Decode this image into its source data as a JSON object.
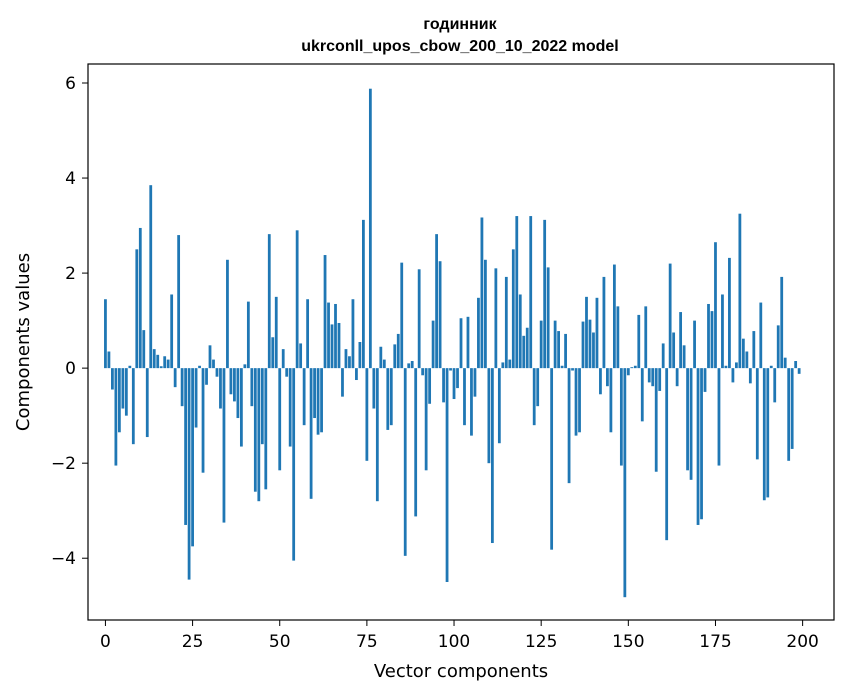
{
  "chart_data": {
    "type": "bar",
    "title_line1": "годинник",
    "title_line2": "ukrconll_upos_cbow_200_10_2022 model",
    "xlabel": "Vector components",
    "ylabel": "Components values",
    "xlim": [
      -5,
      209
    ],
    "ylim": [
      -5.3,
      6.4
    ],
    "xticks": [
      0,
      25,
      50,
      75,
      100,
      125,
      150,
      175,
      200
    ],
    "xtick_labels": [
      "0",
      "25",
      "50",
      "75",
      "100",
      "125",
      "150",
      "175",
      "200"
    ],
    "yticks": [
      -4,
      -2,
      0,
      2,
      4,
      6
    ],
    "ytick_labels": [
      "−4",
      "−2",
      "0",
      "2",
      "4",
      "6"
    ],
    "grid": false,
    "bar_color": "#1f77b4",
    "values": [
      1.45,
      0.35,
      -0.45,
      -2.05,
      -1.35,
      -0.85,
      -1.0,
      0.05,
      -1.6,
      2.5,
      2.95,
      0.8,
      -1.45,
      3.85,
      0.4,
      0.28,
      0.04,
      0.25,
      0.18,
      1.55,
      -0.4,
      2.8,
      -0.8,
      -3.3,
      -4.45,
      -3.75,
      -1.25,
      0.05,
      -2.2,
      -0.35,
      0.48,
      0.18,
      -0.18,
      -0.85,
      -3.25,
      2.28,
      -0.55,
      -0.7,
      -1.05,
      -1.65,
      0.08,
      1.4,
      -0.8,
      -2.6,
      -2.8,
      -1.6,
      -2.55,
      2.82,
      0.65,
      1.5,
      -2.15,
      0.4,
      -0.18,
      -1.65,
      -4.05,
      2.9,
      0.52,
      -1.2,
      1.45,
      -2.75,
      -1.05,
      -1.4,
      -1.35,
      2.38,
      1.38,
      0.92,
      1.35,
      0.95,
      -0.6,
      0.4,
      0.25,
      1.45,
      -0.25,
      0.55,
      3.12,
      -1.95,
      5.88,
      -0.85,
      -2.8,
      0.45,
      0.18,
      -1.3,
      -1.2,
      0.5,
      0.72,
      2.22,
      -3.95,
      0.1,
      0.15,
      -3.12,
      2.08,
      -0.15,
      -2.15,
      -0.75,
      1.0,
      2.82,
      2.25,
      -0.72,
      -4.5,
      -0.05,
      -0.65,
      -0.42,
      1.05,
      -1.2,
      1.08,
      -1.42,
      -0.6,
      1.48,
      3.17,
      2.28,
      -2.0,
      -3.68,
      2.1,
      -1.58,
      0.12,
      1.92,
      0.18,
      2.5,
      3.2,
      1.55,
      0.68,
      0.85,
      3.2,
      -1.2,
      -0.8,
      1.0,
      3.12,
      2.12,
      -3.82,
      1.0,
      0.78,
      0.05,
      0.72,
      -2.42,
      -0.05,
      -1.42,
      -1.35,
      0.98,
      1.5,
      1.02,
      0.75,
      1.48,
      -0.55,
      1.92,
      -0.38,
      -1.35,
      2.18,
      1.3,
      -2.05,
      -4.82,
      -0.15,
      0.02,
      0.05,
      1.12,
      -1.12,
      1.3,
      -0.3,
      -0.38,
      -2.18,
      -0.48,
      0.52,
      -3.62,
      2.2,
      0.75,
      -0.38,
      1.18,
      0.48,
      -2.15,
      -2.35,
      1.0,
      -3.3,
      -3.18,
      -0.5,
      1.35,
      1.2,
      2.65,
      -2.05,
      1.55,
      0.05,
      2.32,
      -0.3,
      0.12,
      3.25,
      0.62,
      0.35,
      -0.32,
      0.78,
      -1.92,
      1.38,
      -2.78,
      -2.72,
      0.05,
      -0.72,
      0.9,
      1.92,
      0.22,
      -1.95,
      -1.7,
      0.15,
      -0.12
    ]
  }
}
